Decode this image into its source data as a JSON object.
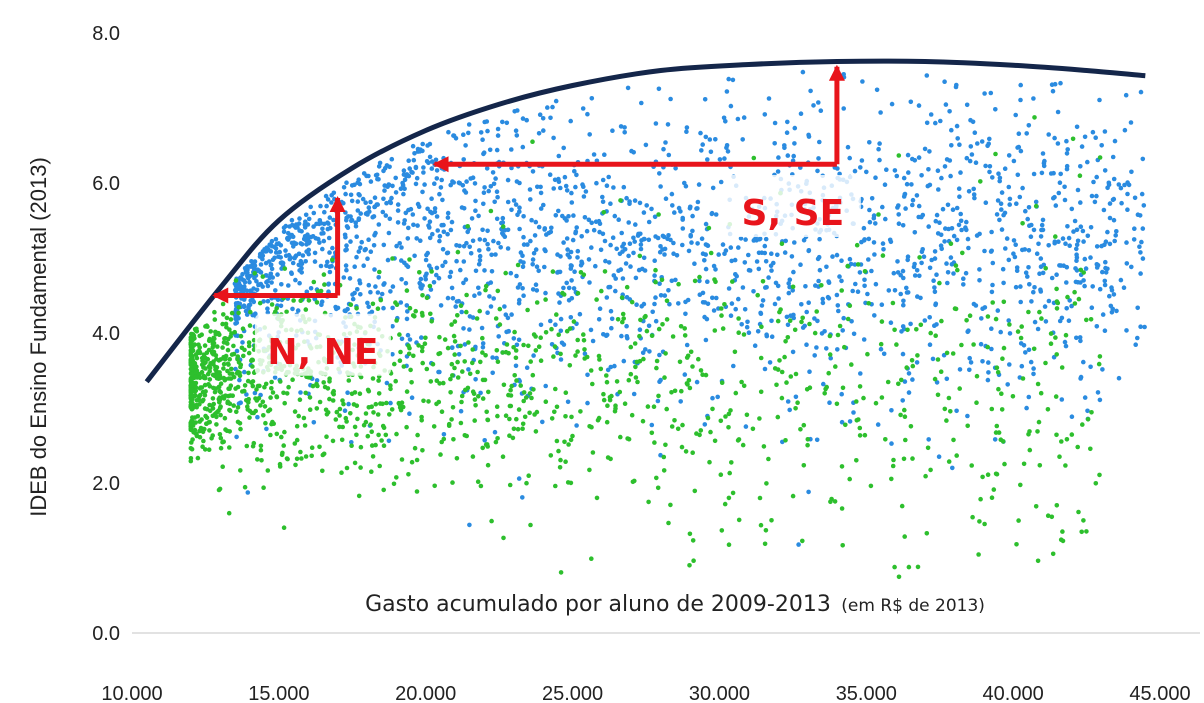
{
  "chart_data": {
    "type": "scatter",
    "title": "",
    "ylabel": "IDEB do Ensino Fundamental (2013)",
    "xlabel": "Gasto acumulado por aluno de 2009-2013",
    "xlabel_unit": "(em R$ de 2013)",
    "xlim": [
      10000,
      45000
    ],
    "ylim": [
      0,
      8
    ],
    "x_ticks": [
      "10.000",
      "15.000",
      "20.000",
      "25.000",
      "30.000",
      "35.000",
      "40.000",
      "45.000"
    ],
    "y_ticks": [
      "0.0",
      "2.0",
      "4.0",
      "6.0",
      "8.0"
    ],
    "grid": false,
    "legend": "none",
    "series": [
      {
        "color": "#2a8be0",
        "cluster": {
          "x_min": 13500,
          "x_max": 44500,
          "y_mean": 5.2,
          "y_sd": 1.0,
          "n": 2200
        }
      },
      {
        "color": "#2dbf2d",
        "cluster": {
          "x_min": 12000,
          "x_max": 43000,
          "y_mean": 3.4,
          "y_sd": 0.9,
          "n": 1500
        }
      }
    ],
    "frontier": {
      "color": "#14264a",
      "points": [
        [
          10500,
          3.35
        ],
        [
          13000,
          4.6
        ],
        [
          15000,
          5.5
        ],
        [
          17500,
          6.2
        ],
        [
          20000,
          6.7
        ],
        [
          22500,
          7.05
        ],
        [
          25000,
          7.3
        ],
        [
          28000,
          7.5
        ],
        [
          31000,
          7.58
        ],
        [
          34000,
          7.62
        ],
        [
          37000,
          7.62
        ],
        [
          40000,
          7.57
        ],
        [
          42500,
          7.5
        ],
        [
          44500,
          7.43
        ]
      ]
    },
    "annotations": {
      "labels": [
        {
          "text": "N, NE",
          "x": 16500,
          "y": 3.75
        },
        {
          "text": "S, SE",
          "x": 32500,
          "y": 5.6
        }
      ],
      "arrows": [
        {
          "color": "#e8141b",
          "path": [
            [
              17000,
              4.5
            ],
            [
              17000,
              5.8
            ]
          ]
        },
        {
          "color": "#e8141b",
          "path": [
            [
              17000,
              4.5
            ],
            [
              12800,
              4.5
            ]
          ]
        },
        {
          "color": "#e8141b",
          "path": [
            [
              34000,
              6.25
            ],
            [
              34000,
              7.55
            ]
          ]
        },
        {
          "color": "#e8141b",
          "path": [
            [
              34000,
              6.25
            ],
            [
              20300,
              6.25
            ]
          ]
        }
      ]
    }
  }
}
